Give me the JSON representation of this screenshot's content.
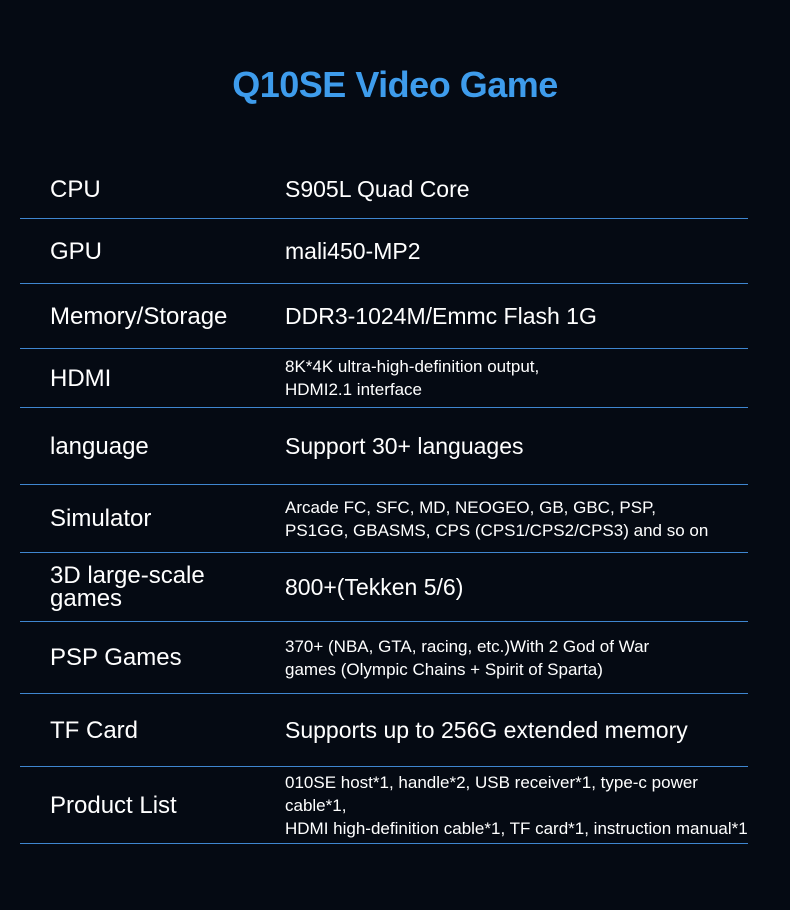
{
  "title": "Q10SE Video Game",
  "specs": [
    {
      "label": "CPU",
      "value": "S905L Quad Core",
      "lines": []
    },
    {
      "label": "GPU",
      "value": "mali450-MP2",
      "lines": []
    },
    {
      "label": "Memory/Storage",
      "value": "DDR3-1024M/Emmc Flash 1G",
      "lines": []
    },
    {
      "label": "HDMI",
      "value": "",
      "lines": [
        "8K*4K ultra-high-definition output,",
        "HDMI2.1 interface"
      ]
    },
    {
      "label": "language",
      "value": "Support 30+ languages",
      "lines": []
    },
    {
      "label": "Simulator",
      "value": "",
      "lines": [
        "Arcade FC, SFC, MD, NEOGEO, GB, GBC, PSP,",
        "PS1GG, GBASMS, CPS (CPS1/CPS2/CPS3) and so on"
      ]
    },
    {
      "label": "3D large-scale games",
      "value": "800+(Tekken 5/6)",
      "lines": []
    },
    {
      "label": "PSP Games",
      "value": "",
      "lines": [
        "370+ (NBA, GTA, racing, etc.)With 2 God of War",
        "games (Olympic Chains + Spirit of Sparta)"
      ]
    },
    {
      "label": "TF Card",
      "value": "Supports up to 256G extended memory",
      "lines": []
    },
    {
      "label": "Product List",
      "value": "",
      "lines": [
        "010SE host*1, handle*2, USB receiver*1, type-c power cable*1,",
        "HDMI high-definition cable*1, TF card*1, instruction manual*1"
      ]
    }
  ],
  "colors": {
    "background": "#050a13",
    "title": "#3e9cec",
    "divider": "#3f86d0"
  }
}
